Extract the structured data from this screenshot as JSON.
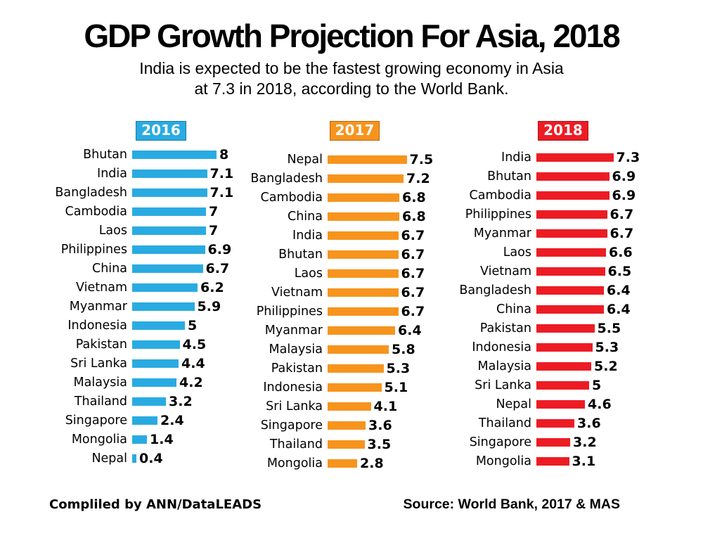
{
  "title": "GDP Growth Projection For Asia, 2018",
  "subtitle": {
    "line1": "India is expected to be the fastest growing economy in Asia",
    "line2": "at 7.3 in 2018, according to the World Bank."
  },
  "footer": {
    "compiled_by": "Compliled by ANN/DataLEADS",
    "source": "Source: World Bank, 2017 & MAS"
  },
  "colors": {
    "year_2016": "#29ABE2",
    "year_2017": "#F7941E",
    "year_2018": "#ED1C24",
    "text": "#000000",
    "background": "#FFFFFF"
  },
  "chart_data": [
    {
      "type": "bar",
      "orientation": "horizontal",
      "title": "2016",
      "color": "#29ABE2",
      "xlim": [
        0,
        8
      ],
      "grid": false,
      "legend_position": "none",
      "categories": [
        "Bhutan",
        "India",
        "Bangladesh",
        "Cambodia",
        "Laos",
        "Philippines",
        "China",
        "Vietnam",
        "Myanmar",
        "Indonesia",
        "Pakistan",
        "Sri Lanka",
        "Malaysia",
        "Thailand",
        "Singapore",
        "Mongolia",
        "Nepal"
      ],
      "values": [
        8,
        7.1,
        7.1,
        7,
        7,
        6.9,
        6.7,
        6.2,
        5.9,
        5,
        4.5,
        4.4,
        4.2,
        3.2,
        2.4,
        1.4,
        0.4
      ]
    },
    {
      "type": "bar",
      "orientation": "horizontal",
      "title": "2017",
      "color": "#F7941E",
      "xlim": [
        0,
        8
      ],
      "grid": false,
      "legend_position": "none",
      "categories": [
        "Nepal",
        "Bangladesh",
        "Cambodia",
        "China",
        "India",
        "Bhutan",
        "Laos",
        "Vietnam",
        "Philippines",
        "Myanmar",
        "Malaysia",
        "Pakistan",
        "Indonesia",
        "Sri Lanka",
        "Singapore",
        "Thailand",
        "Mongolia"
      ],
      "values": [
        7.5,
        7.2,
        6.8,
        6.8,
        6.7,
        6.7,
        6.7,
        6.7,
        6.7,
        6.4,
        5.8,
        5.3,
        5.1,
        4.1,
        3.6,
        3.5,
        2.8
      ]
    },
    {
      "type": "bar",
      "orientation": "horizontal",
      "title": "2018",
      "color": "#ED1C24",
      "xlim": [
        0,
        8
      ],
      "grid": false,
      "legend_position": "none",
      "categories": [
        "India",
        "Bhutan",
        "Cambodia",
        "Philippines",
        "Myanmar",
        "Laos",
        "Vietnam",
        "Bangladesh",
        "China",
        "Pakistan",
        "Indonesia",
        "Malaysia",
        "Sri Lanka",
        "Nepal",
        "Thailand",
        "Singapore",
        "Mongolia"
      ],
      "values": [
        7.3,
        6.9,
        6.9,
        6.7,
        6.7,
        6.6,
        6.5,
        6.4,
        6.4,
        5.5,
        5.3,
        5.2,
        5,
        4.6,
        3.6,
        3.2,
        3.1
      ]
    }
  ]
}
